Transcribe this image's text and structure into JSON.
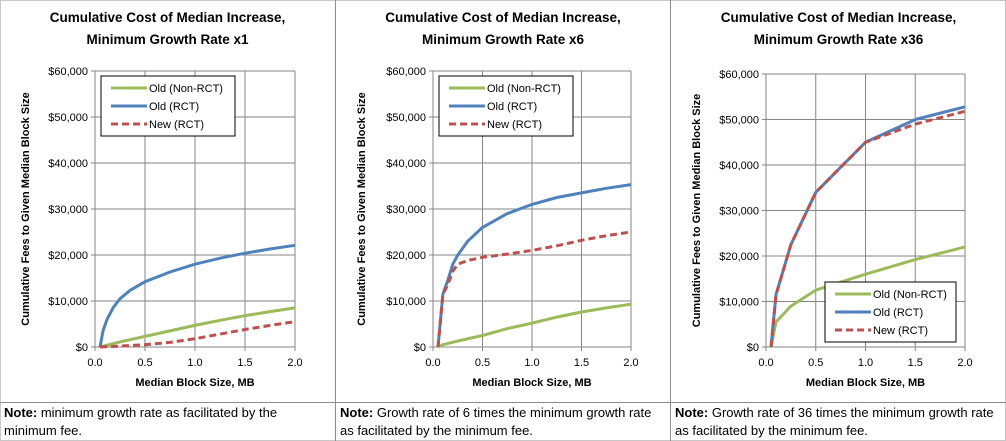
{
  "chart_data": [
    {
      "type": "line",
      "title": [
        "Cumulative Cost of Median Increase,",
        "Minimum Growth Rate x1"
      ],
      "xlabel": "Median Block Size, MB",
      "ylabel": "Cumulative Fees to Given Median Block Size",
      "xlim": [
        0,
        2.0
      ],
      "ylim": [
        0,
        60000
      ],
      "xticks": [
        "0.0",
        "0.5",
        "1.0",
        "1.5",
        "2.0"
      ],
      "yticks": [
        "$0",
        "$10,000",
        "$20,000",
        "$30,000",
        "$40,000",
        "$50,000",
        "$60,000"
      ],
      "grid": true,
      "legend": "top-left",
      "series": [
        {
          "name": "Old (Non-RCT)",
          "color": "#9bbb59",
          "dash": false,
          "x": [
            0.05,
            0.25,
            0.5,
            0.75,
            1.0,
            1.25,
            1.5,
            1.75,
            2.0
          ],
          "y": [
            0,
            1100,
            2300,
            3500,
            4700,
            5800,
            6800,
            7700,
            8500
          ]
        },
        {
          "name": "Old (RCT)",
          "color": "#4f81bd",
          "dash": false,
          "x": [
            0.05,
            0.08,
            0.12,
            0.18,
            0.25,
            0.35,
            0.5,
            0.75,
            1.0,
            1.25,
            1.5,
            1.75,
            2.0
          ],
          "y": [
            0,
            3500,
            6000,
            8500,
            10500,
            12300,
            14200,
            16300,
            18000,
            19300,
            20400,
            21300,
            22100
          ]
        },
        {
          "name": "New (RCT)",
          "color": "#c0504d",
          "dash": true,
          "x": [
            0.05,
            0.25,
            0.5,
            0.75,
            1.0,
            1.25,
            1.5,
            1.75,
            2.0
          ],
          "y": [
            0,
            200,
            500,
            1000,
            1800,
            2800,
            3800,
            4700,
            5500
          ]
        }
      ]
    },
    {
      "type": "line",
      "title": [
        "Cumulative Cost of Median Increase,",
        "Minimum Growth Rate x6"
      ],
      "xlabel": "Median Block Size, MB",
      "ylabel": "Cumulative Fees to Given Median Block Size",
      "xlim": [
        0,
        2.0
      ],
      "ylim": [
        0,
        60000
      ],
      "xticks": [
        "0.0",
        "0.5",
        "1.0",
        "1.5",
        "2.0"
      ],
      "yticks": [
        "$0",
        "$10,000",
        "$20,000",
        "$30,000",
        "$40,000",
        "$50,000",
        "$60,000"
      ],
      "grid": true,
      "legend": "top-left",
      "series": [
        {
          "name": "Old (Non-RCT)",
          "color": "#9bbb59",
          "dash": false,
          "x": [
            0.05,
            0.1,
            0.25,
            0.5,
            0.75,
            1.0,
            1.25,
            1.5,
            1.75,
            2.0
          ],
          "y": [
            0,
            500,
            1300,
            2500,
            4000,
            5200,
            6500,
            7600,
            8500,
            9300
          ]
        },
        {
          "name": "Old (RCT)",
          "color": "#4f81bd",
          "dash": false,
          "x": [
            0.05,
            0.1,
            0.15,
            0.2,
            0.25,
            0.35,
            0.5,
            0.75,
            1.0,
            1.25,
            1.5,
            1.75,
            2.0
          ],
          "y": [
            0,
            11500,
            14500,
            18000,
            20000,
            23000,
            26000,
            29000,
            31000,
            32500,
            33500,
            34500,
            35300
          ]
        },
        {
          "name": "New (RCT)",
          "color": "#c0504d",
          "dash": true,
          "x": [
            0.05,
            0.1,
            0.15,
            0.2,
            0.25,
            0.35,
            0.5,
            0.75,
            1.0,
            1.25,
            1.5,
            1.75,
            2.0
          ],
          "y": [
            0,
            11500,
            13500,
            16500,
            18000,
            18800,
            19500,
            20200,
            21000,
            22000,
            23200,
            24200,
            25000
          ]
        }
      ]
    },
    {
      "type": "line",
      "title": [
        "Cumulative Cost of Median Increase,",
        "Minimum Growth Rate x36"
      ],
      "xlabel": "Median Block Size, MB",
      "ylabel": "Cumulative Fees to Given Median Block Size",
      "xlim": [
        0,
        2.0
      ],
      "ylim": [
        0,
        60000
      ],
      "xticks": [
        "0.0",
        "0.5",
        "1.0",
        "1.5",
        "2.0"
      ],
      "yticks": [
        "$0",
        "$10,000",
        "$20,000",
        "$30,000",
        "$40,000",
        "$50,000",
        "$60,000"
      ],
      "grid": true,
      "legend": "bottom-right",
      "series": [
        {
          "name": "Old (Non-RCT)",
          "color": "#9bbb59",
          "dash": false,
          "x": [
            0.05,
            0.1,
            0.25,
            0.5,
            1.0,
            1.5,
            2.0
          ],
          "y": [
            0,
            5500,
            9000,
            12500,
            16000,
            19200,
            22000
          ]
        },
        {
          "name": "Old (RCT)",
          "color": "#4f81bd",
          "dash": false,
          "x": [
            0.05,
            0.1,
            0.25,
            0.5,
            0.75,
            1.0,
            1.5,
            2.0
          ],
          "y": [
            0,
            11500,
            22500,
            34000,
            39500,
            45000,
            50000,
            52800
          ]
        },
        {
          "name": "New (RCT)",
          "color": "#c0504d",
          "dash": true,
          "x": [
            0.05,
            0.1,
            0.25,
            0.5,
            0.75,
            1.0,
            1.5,
            2.0
          ],
          "y": [
            0,
            11500,
            22500,
            34000,
            39500,
            45000,
            49000,
            51800
          ]
        }
      ]
    }
  ],
  "notes": [
    {
      "label": "Note:",
      "text": " minimum growth rate as facilitated by the minimum fee."
    },
    {
      "label": "Note:",
      "text": " Growth rate of 6 times the minimum growth rate as facilitated by the minimum fee."
    },
    {
      "label": "Note:",
      "text": " Growth rate of 36 times the minimum growth rate as facilitated by the minimum fee."
    }
  ]
}
